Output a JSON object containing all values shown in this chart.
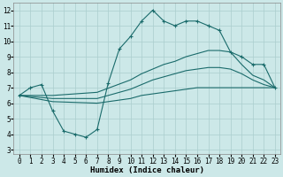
{
  "xlabel": "Humidex (Indice chaleur)",
  "xlim": [
    -0.5,
    23.5
  ],
  "ylim": [
    2.7,
    12.5
  ],
  "yticks": [
    3,
    4,
    5,
    6,
    7,
    8,
    9,
    10,
    11,
    12
  ],
  "xticks": [
    0,
    1,
    2,
    3,
    4,
    5,
    6,
    7,
    8,
    9,
    10,
    11,
    12,
    13,
    14,
    15,
    16,
    17,
    18,
    19,
    20,
    21,
    22,
    23
  ],
  "bg_color": "#cce8e8",
  "line_color": "#1a6b6b",
  "grid_color": "#aacece",
  "line1_x": [
    0,
    1,
    2,
    3,
    4,
    5,
    6,
    7,
    8,
    9,
    10,
    11,
    12,
    13,
    14,
    15,
    16,
    17,
    18,
    19,
    20,
    21,
    22,
    23
  ],
  "line1_y": [
    6.5,
    7.0,
    7.2,
    5.5,
    4.2,
    4.0,
    3.8,
    4.3,
    7.3,
    9.5,
    10.3,
    11.3,
    12.0,
    11.3,
    11.0,
    11.3,
    11.3,
    11.0,
    10.7,
    9.3,
    9.0,
    8.5,
    8.5,
    7.0
  ],
  "line2_x": [
    0,
    3,
    7,
    10,
    11,
    12,
    13,
    14,
    15,
    16,
    17,
    18,
    19,
    20,
    21,
    22,
    23
  ],
  "line2_y": [
    6.5,
    6.5,
    6.7,
    7.5,
    7.9,
    8.2,
    8.5,
    8.7,
    9.0,
    9.2,
    9.4,
    9.4,
    9.3,
    8.5,
    7.8,
    7.5,
    7.0
  ],
  "line3_x": [
    0,
    3,
    7,
    10,
    11,
    12,
    13,
    14,
    15,
    16,
    17,
    18,
    19,
    20,
    21,
    22,
    23
  ],
  "line3_y": [
    6.5,
    6.3,
    6.3,
    6.9,
    7.2,
    7.5,
    7.7,
    7.9,
    8.1,
    8.2,
    8.3,
    8.3,
    8.2,
    7.9,
    7.5,
    7.2,
    7.0
  ],
  "line4_x": [
    0,
    3,
    7,
    10,
    11,
    12,
    13,
    14,
    15,
    16,
    17,
    18,
    19,
    20,
    21,
    22,
    23
  ],
  "line4_y": [
    6.5,
    6.1,
    6.0,
    6.3,
    6.5,
    6.6,
    6.7,
    6.8,
    6.9,
    7.0,
    7.0,
    7.0,
    7.0,
    7.0,
    7.0,
    7.0,
    7.0
  ],
  "tick_fontsize": 5.5,
  "xlabel_fontsize": 6.5
}
